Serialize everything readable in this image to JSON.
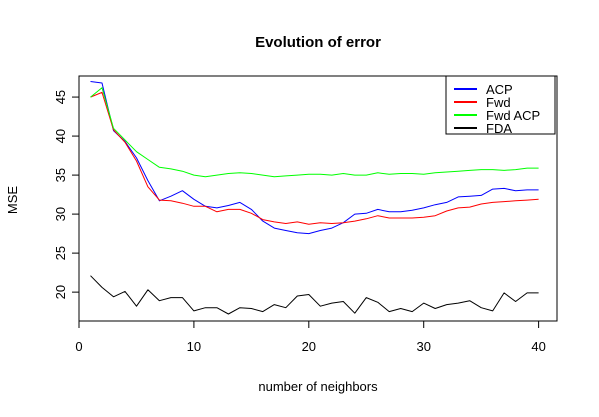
{
  "chart_data": {
    "type": "line",
    "title": "Evolution of error",
    "xlabel": "number of neighbors",
    "ylabel": "MSE",
    "xlim": [
      0,
      41.6
    ],
    "ylim": [
      16.3,
      47.7
    ],
    "xticks": [
      0,
      10,
      20,
      30,
      40
    ],
    "yticks": [
      20,
      25,
      30,
      35,
      40,
      45
    ],
    "grid": false,
    "legend_position": "top-right",
    "x": [
      1,
      2,
      3,
      4,
      5,
      6,
      7,
      8,
      9,
      10,
      11,
      12,
      13,
      14,
      15,
      16,
      17,
      18,
      19,
      20,
      21,
      22,
      23,
      24,
      25,
      26,
      27,
      28,
      29,
      30,
      31,
      32,
      33,
      34,
      35,
      36,
      37,
      38,
      39,
      40
    ],
    "series": [
      {
        "name": "ACP",
        "color": "#0000ff",
        "values": [
          47.0,
          46.8,
          40.7,
          39.3,
          37.2,
          34.3,
          31.7,
          32.3,
          33.0,
          31.9,
          31.0,
          30.8,
          31.1,
          31.5,
          30.6,
          29.1,
          28.2,
          27.9,
          27.6,
          27.5,
          27.9,
          28.2,
          28.9,
          30.0,
          30.1,
          30.6,
          30.3,
          30.3,
          30.5,
          30.8,
          31.2,
          31.5,
          32.2,
          32.3,
          32.4,
          33.2,
          33.3,
          33.0,
          33.1,
          33.1
        ]
      },
      {
        "name": "Fwd",
        "color": "#ff0000",
        "values": [
          45.0,
          45.6,
          40.8,
          39.2,
          36.8,
          33.5,
          31.8,
          31.7,
          31.4,
          31.0,
          31.0,
          30.3,
          30.6,
          30.6,
          30.1,
          29.3,
          29.0,
          28.8,
          29.0,
          28.7,
          28.9,
          28.8,
          28.9,
          29.1,
          29.4,
          29.8,
          29.5,
          29.5,
          29.5,
          29.6,
          29.8,
          30.4,
          30.8,
          30.9,
          31.3,
          31.5,
          31.6,
          31.7,
          31.8,
          31.9
        ]
      },
      {
        "name": "Fwd ACP",
        "color": "#00ff00",
        "values": [
          45.0,
          46.2,
          41.0,
          39.5,
          38.0,
          37.0,
          36.0,
          35.8,
          35.5,
          35.0,
          34.8,
          35.0,
          35.2,
          35.3,
          35.2,
          35.0,
          34.8,
          34.9,
          35.0,
          35.1,
          35.1,
          35.0,
          35.2,
          35.0,
          35.0,
          35.3,
          35.1,
          35.2,
          35.2,
          35.1,
          35.3,
          35.4,
          35.5,
          35.6,
          35.7,
          35.7,
          35.6,
          35.7,
          35.9,
          35.9
        ]
      },
      {
        "name": "FDA",
        "color": "#000000",
        "values": [
          22.1,
          20.6,
          19.4,
          20.1,
          18.2,
          20.3,
          18.9,
          19.3,
          19.3,
          17.6,
          18.0,
          18.0,
          17.2,
          18.0,
          17.9,
          17.5,
          18.4,
          18.0,
          19.5,
          19.7,
          18.2,
          18.6,
          18.8,
          17.3,
          19.3,
          18.7,
          17.5,
          17.9,
          17.5,
          18.6,
          17.9,
          18.4,
          18.6,
          18.9,
          18.0,
          17.6,
          19.9,
          18.8,
          19.9,
          19.9
        ]
      }
    ]
  }
}
